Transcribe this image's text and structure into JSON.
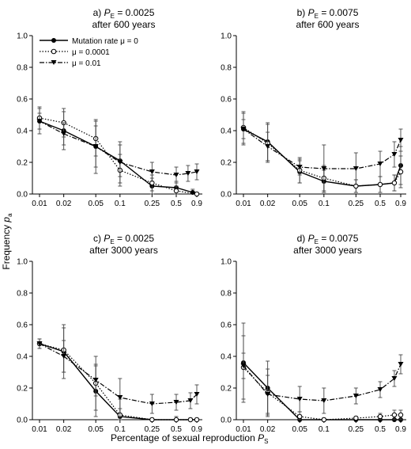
{
  "figure": {
    "xlabel_main": "Percentage of sexual reproduction ",
    "xlabel_var": "P",
    "xlabel_sub": "S",
    "ylabel_main": "Frequency ",
    "ylabel_var": "p",
    "ylabel_sub": "a"
  },
  "legend": {
    "entries": [
      {
        "label": "Mutation rate μ = 0",
        "line": "solid",
        "marker": "filled-circle"
      },
      {
        "label": "μ = 0.0001",
        "line": "dotted",
        "marker": "open-circle"
      },
      {
        "label": "μ = 0.01",
        "line": "dashdot",
        "marker": "filled-triangle-down"
      }
    ]
  },
  "chart_data": [
    {
      "type": "line",
      "panel_letter": "a)",
      "title_var": "P",
      "title_sub": "E",
      "title_value": " = 0.0025",
      "subtitle": "after 600 years",
      "categories": [
        "0.01",
        "0.02",
        "0.05",
        "0.1",
        "0.25",
        "0.5",
        "0.9"
      ],
      "x": [
        0.01,
        0.02,
        0.05,
        0.1,
        0.25,
        0.5,
        0.9
      ],
      "xscale": "log",
      "ylim": [
        0,
        1.0
      ],
      "yticks": [
        "0.0",
        "0.2",
        "0.4",
        "0.6",
        "0.8",
        "1.0"
      ],
      "series": [
        {
          "name": "Mutation rate μ = 0",
          "style": "solid",
          "marker": "filled-circle",
          "x": [
            0.01,
            0.02,
            0.05,
            0.1,
            0.25,
            0.5,
            0.8
          ],
          "values": [
            0.46,
            0.4,
            0.3,
            0.21,
            0.05,
            0.04,
            0.01
          ],
          "err": [
            0.08,
            0.12,
            0.17,
            0.1,
            0.05,
            0.04,
            0.02
          ]
        },
        {
          "name": "μ = 0.0001",
          "style": "dotted",
          "marker": "open-circle",
          "x": [
            0.01,
            0.02,
            0.05,
            0.1,
            0.25,
            0.5,
            0.9
          ],
          "values": [
            0.48,
            0.45,
            0.35,
            0.15,
            0.07,
            0.02,
            0.0
          ],
          "err": [
            0.07,
            0.09,
            0.11,
            0.1,
            0.05,
            0.03,
            0.01
          ]
        },
        {
          "name": "μ = 0.01",
          "style": "dashdot",
          "marker": "filled-triangle-down",
          "x": [
            0.01,
            0.02,
            0.05,
            0.1,
            0.25,
            0.5,
            0.7,
            0.9
          ],
          "values": [
            0.46,
            0.38,
            0.3,
            0.2,
            0.14,
            0.12,
            0.13,
            0.14
          ],
          "err": [
            0.05,
            0.07,
            0.13,
            0.13,
            0.06,
            0.05,
            0.05,
            0.05
          ]
        }
      ]
    },
    {
      "type": "line",
      "panel_letter": "b)",
      "title_var": "P",
      "title_sub": "E",
      "title_value": " = 0.0075",
      "subtitle": "after 600 years",
      "categories": [
        "0.01",
        "0.02",
        "0.05",
        "0.1",
        "0.25",
        "0.5",
        "0.9"
      ],
      "x": [
        0.01,
        0.02,
        0.05,
        0.1,
        0.25,
        0.5,
        0.9
      ],
      "xscale": "log",
      "ylim": [
        0,
        1.0
      ],
      "yticks": [
        "0.0",
        "0.2",
        "0.4",
        "0.6",
        "0.8",
        "1.0"
      ],
      "series": [
        {
          "name": "Mutation rate μ = 0",
          "style": "solid",
          "marker": "filled-circle",
          "x": [
            0.01,
            0.02,
            0.05,
            0.1,
            0.25,
            0.5,
            0.75,
            0.9
          ],
          "values": [
            0.41,
            0.33,
            0.14,
            0.08,
            0.05,
            0.06,
            0.07,
            0.18
          ],
          "err": [
            0.1,
            0.12,
            0.07,
            0.07,
            0.04,
            0.05,
            0.05,
            0.12
          ]
        },
        {
          "name": "μ = 0.0001",
          "style": "dotted",
          "marker": "open-circle",
          "x": [
            0.01,
            0.02,
            0.05,
            0.1,
            0.25,
            0.5,
            0.75,
            0.9
          ],
          "values": [
            0.42,
            0.32,
            0.15,
            0.1,
            0.05,
            0.06,
            0.07,
            0.14
          ],
          "err": [
            0.1,
            0.12,
            0.08,
            0.08,
            0.04,
            0.05,
            0.05,
            0.1
          ]
        },
        {
          "name": "μ = 0.01",
          "style": "dashdot",
          "marker": "filled-triangle-down",
          "x": [
            0.01,
            0.02,
            0.05,
            0.1,
            0.25,
            0.5,
            0.75,
            0.9
          ],
          "values": [
            0.41,
            0.3,
            0.17,
            0.16,
            0.16,
            0.19,
            0.25,
            0.34
          ],
          "err": [
            0.06,
            0.09,
            0.05,
            0.15,
            0.1,
            0.08,
            0.08,
            0.07
          ]
        }
      ]
    },
    {
      "type": "line",
      "panel_letter": "c)",
      "title_var": "P",
      "title_sub": "E",
      "title_value": " = 0.0025",
      "subtitle": "after 3000 years",
      "categories": [
        "0.01",
        "0.02",
        "0.05",
        "0.1",
        "0.25",
        "0.5",
        "0.9"
      ],
      "x": [
        0.01,
        0.02,
        0.05,
        0.1,
        0.25,
        0.5,
        0.9
      ],
      "xscale": "log",
      "ylim": [
        0,
        1.0
      ],
      "yticks": [
        "0.0",
        "0.2",
        "0.4",
        "0.6",
        "0.8",
        "1.0"
      ],
      "series": [
        {
          "name": "Mutation rate μ = 0",
          "style": "solid",
          "marker": "filled-circle",
          "x": [
            0.01,
            0.02,
            0.05,
            0.1,
            0.25,
            0.5,
            0.75,
            0.9
          ],
          "values": [
            0.48,
            0.43,
            0.18,
            0.02,
            0.0,
            0.0,
            0.0,
            0.0
          ],
          "err": [
            0.03,
            0.17,
            0.16,
            0.05,
            0.01,
            0.0,
            0.01,
            0.0
          ]
        },
        {
          "name": "μ = 0.0001",
          "style": "dotted",
          "marker": "open-circle",
          "x": [
            0.01,
            0.02,
            0.05,
            0.1,
            0.25,
            0.5,
            0.75,
            0.9
          ],
          "values": [
            0.48,
            0.44,
            0.23,
            0.03,
            0.0,
            0.0,
            0.0,
            0.0
          ],
          "err": [
            0.03,
            0.14,
            0.17,
            0.1,
            0.01,
            0.02,
            0.01,
            0.01
          ]
        },
        {
          "name": "μ = 0.01",
          "style": "dashdot",
          "marker": "filled-triangle-down",
          "x": [
            0.01,
            0.02,
            0.05,
            0.1,
            0.25,
            0.5,
            0.75,
            0.9
          ],
          "values": [
            0.48,
            0.4,
            0.25,
            0.14,
            0.1,
            0.11,
            0.12,
            0.16
          ],
          "err": [
            0.03,
            0.1,
            0.1,
            0.12,
            0.06,
            0.05,
            0.05,
            0.06
          ]
        }
      ]
    },
    {
      "type": "line",
      "panel_letter": "d)",
      "title_var": "P",
      "title_sub": "E",
      "title_value": " = 0.0075",
      "subtitle": "after 3000 years",
      "categories": [
        "0.01",
        "0.02",
        "0.05",
        "0.1",
        "0.25",
        "0.5",
        "0.9"
      ],
      "x": [
        0.01,
        0.02,
        0.05,
        0.1,
        0.25,
        0.5,
        0.9
      ],
      "xscale": "log",
      "ylim": [
        0,
        1.0
      ],
      "yticks": [
        "0.0",
        "0.2",
        "0.4",
        "0.6",
        "0.8",
        "1.0"
      ],
      "series": [
        {
          "name": "Mutation rate μ = 0",
          "style": "solid",
          "marker": "filled-circle",
          "x": [
            0.01,
            0.02,
            0.05,
            0.1,
            0.25,
            0.5,
            0.75,
            0.9
          ],
          "values": [
            0.36,
            0.2,
            0.0,
            0.0,
            0.0,
            0.0,
            0.0,
            0.0
          ],
          "err": [
            0.25,
            0.17,
            0.03,
            0.01,
            0.0,
            0.0,
            0.0,
            0.0
          ]
        },
        {
          "name": "μ = 0.0001",
          "style": "dotted",
          "marker": "open-circle",
          "x": [
            0.01,
            0.02,
            0.05,
            0.1,
            0.25,
            0.5,
            0.75,
            0.9
          ],
          "values": [
            0.33,
            0.17,
            0.02,
            0.0,
            0.01,
            0.02,
            0.03,
            0.03
          ],
          "err": [
            0.2,
            0.15,
            0.03,
            0.01,
            0.01,
            0.02,
            0.03,
            0.03
          ]
        },
        {
          "name": "μ = 0.01",
          "style": "dashdot",
          "marker": "filled-triangle-down",
          "x": [
            0.01,
            0.02,
            0.05,
            0.1,
            0.25,
            0.5,
            0.75,
            0.9
          ],
          "values": [
            0.34,
            0.16,
            0.13,
            0.12,
            0.15,
            0.19,
            0.26,
            0.35
          ],
          "err": [
            0.08,
            0.12,
            0.08,
            0.08,
            0.05,
            0.05,
            0.05,
            0.06
          ]
        }
      ]
    }
  ]
}
